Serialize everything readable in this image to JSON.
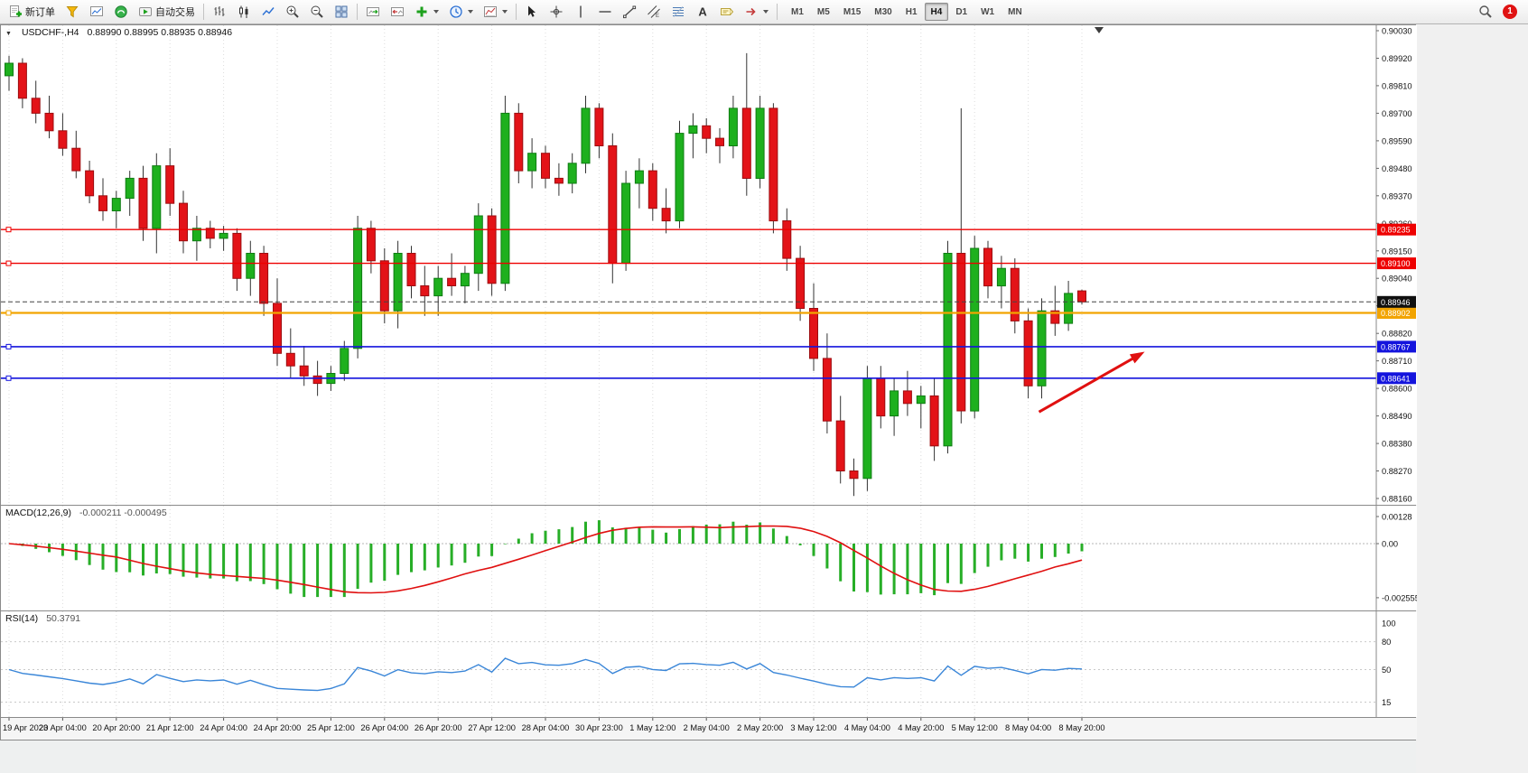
{
  "toolbar": {
    "new_order_label": "新订单",
    "auto_trading_label": "自动交易",
    "timeframes": [
      "M1",
      "M5",
      "M15",
      "M30",
      "H1",
      "H4",
      "D1",
      "W1",
      "MN"
    ],
    "active_timeframe": "H4",
    "notification_count": "1",
    "icons": [
      "new-order",
      "funnel",
      "new-chart",
      "terminal-logo",
      "auto-trading",
      "bar-chart",
      "candlestick-chart",
      "line-chart",
      "zoom-in",
      "zoom-out",
      "tile-windows",
      "auto-scroll",
      "chart-shift",
      "add-indicator",
      "periods-clock",
      "templates",
      "cursor",
      "crosshair",
      "vertical-line",
      "horizontal-line",
      "trendline",
      "equidistant-channel",
      "fibonacci",
      "text",
      "text-label",
      "arrows",
      "search",
      "notification"
    ]
  },
  "chart": {
    "symbol_title": "USDCHF-,H4",
    "ohlc_text": "0.88990 0.88995 0.88935 0.88946"
  },
  "chart_data": {
    "type": "candlestick",
    "symbol": "USDCHF",
    "timeframe": "H4",
    "bars_per_label": 4,
    "price_axis": {
      "max": 0.9003,
      "min": 0.8816,
      "ticks": [
        "0.90030",
        "0.89920",
        "0.89810",
        "0.89700",
        "0.89590",
        "0.89480",
        "0.89370",
        "0.89260",
        "0.89150",
        "0.89040",
        "0.88930",
        "0.88820",
        "0.88710",
        "0.88600",
        "0.88490",
        "0.88380",
        "0.88270",
        "0.88160"
      ]
    },
    "time_labels": [
      "19 Apr 2023",
      "20 Apr 04:00",
      "20 Apr 20:00",
      "21 Apr 12:00",
      "24 Apr 04:00",
      "24 Apr 20:00",
      "25 Apr 12:00",
      "26 Apr 04:00",
      "26 Apr 20:00",
      "27 Apr 12:00",
      "28 Apr 04:00",
      "30 Apr 23:00",
      "1 May 12:00",
      "2 May 04:00",
      "2 May 20:00",
      "3 May 12:00",
      "4 May 04:00",
      "4 May 20:00",
      "5 May 12:00",
      "8 May 04:00",
      "8 May 20:00"
    ],
    "candles": [
      [
        0.8985,
        0.8993,
        0.8979,
        0.899
      ],
      [
        0.899,
        0.8992,
        0.8972,
        0.8976
      ],
      [
        0.8976,
        0.8983,
        0.8966,
        0.897
      ],
      [
        0.897,
        0.8977,
        0.896,
        0.8963
      ],
      [
        0.8963,
        0.897,
        0.8953,
        0.8956
      ],
      [
        0.8956,
        0.8963,
        0.8944,
        0.8947
      ],
      [
        0.8947,
        0.8951,
        0.8934,
        0.8937
      ],
      [
        0.8937,
        0.8944,
        0.8927,
        0.8931
      ],
      [
        0.8931,
        0.8939,
        0.8924,
        0.8936
      ],
      [
        0.8936,
        0.8947,
        0.8929,
        0.8944
      ],
      [
        0.8944,
        0.8949,
        0.8919,
        0.8924
      ],
      [
        0.8924,
        0.8954,
        0.8914,
        0.8949
      ],
      [
        0.8949,
        0.8956,
        0.8929,
        0.8934
      ],
      [
        0.8934,
        0.8939,
        0.8914,
        0.8919
      ],
      [
        0.8919,
        0.8929,
        0.8911,
        0.8924
      ],
      [
        0.8924,
        0.8927,
        0.8916,
        0.892
      ],
      [
        0.892,
        0.8925,
        0.8915,
        0.8922
      ],
      [
        0.8922,
        0.8924,
        0.8899,
        0.8904
      ],
      [
        0.8904,
        0.8919,
        0.8897,
        0.8914
      ],
      [
        0.8914,
        0.8917,
        0.8889,
        0.8894
      ],
      [
        0.8894,
        0.8904,
        0.8869,
        0.8874
      ],
      [
        0.8874,
        0.8884,
        0.8864,
        0.8869
      ],
      [
        0.8869,
        0.8877,
        0.8861,
        0.8865
      ],
      [
        0.8865,
        0.8871,
        0.8857,
        0.8862
      ],
      [
        0.8862,
        0.8869,
        0.8859,
        0.8866
      ],
      [
        0.8866,
        0.8879,
        0.8863,
        0.8876
      ],
      [
        0.8876,
        0.8929,
        0.8872,
        0.8924
      ],
      [
        0.8924,
        0.8927,
        0.8906,
        0.8911
      ],
      [
        0.8911,
        0.8916,
        0.8886,
        0.8891
      ],
      [
        0.8891,
        0.8919,
        0.8884,
        0.8914
      ],
      [
        0.8914,
        0.8917,
        0.8896,
        0.8901
      ],
      [
        0.8901,
        0.8909,
        0.8889,
        0.8897
      ],
      [
        0.8897,
        0.8909,
        0.8889,
        0.8904
      ],
      [
        0.8904,
        0.8914,
        0.8897,
        0.8901
      ],
      [
        0.8901,
        0.8909,
        0.8894,
        0.8906
      ],
      [
        0.8906,
        0.8934,
        0.8899,
        0.8929
      ],
      [
        0.8929,
        0.8932,
        0.8897,
        0.8902
      ],
      [
        0.8902,
        0.8977,
        0.8899,
        0.897
      ],
      [
        0.897,
        0.8974,
        0.8942,
        0.8947
      ],
      [
        0.8947,
        0.896,
        0.894,
        0.8954
      ],
      [
        0.8954,
        0.8957,
        0.894,
        0.8944
      ],
      [
        0.8944,
        0.895,
        0.8937,
        0.8942
      ],
      [
        0.8942,
        0.8954,
        0.8938,
        0.895
      ],
      [
        0.895,
        0.8977,
        0.8946,
        0.8972
      ],
      [
        0.8972,
        0.8974,
        0.8952,
        0.8957
      ],
      [
        0.8957,
        0.8962,
        0.8902,
        0.891
      ],
      [
        0.891,
        0.8947,
        0.8907,
        0.8942
      ],
      [
        0.8942,
        0.8952,
        0.8932,
        0.8947
      ],
      [
        0.8947,
        0.895,
        0.8927,
        0.8932
      ],
      [
        0.8932,
        0.894,
        0.8922,
        0.8927
      ],
      [
        0.8927,
        0.8967,
        0.8924,
        0.8962
      ],
      [
        0.8962,
        0.897,
        0.8952,
        0.8965
      ],
      [
        0.8965,
        0.8968,
        0.8954,
        0.896
      ],
      [
        0.896,
        0.8964,
        0.895,
        0.8957
      ],
      [
        0.8957,
        0.8977,
        0.8952,
        0.8972
      ],
      [
        0.8972,
        0.8994,
        0.8937,
        0.8944
      ],
      [
        0.8944,
        0.8977,
        0.894,
        0.8972
      ],
      [
        0.8972,
        0.8974,
        0.8922,
        0.8927
      ],
      [
        0.8927,
        0.8932,
        0.8907,
        0.8912
      ],
      [
        0.8912,
        0.8917,
        0.8887,
        0.8892
      ],
      [
        0.8892,
        0.8902,
        0.8867,
        0.8872
      ],
      [
        0.8872,
        0.8882,
        0.8842,
        0.8847
      ],
      [
        0.8847,
        0.8857,
        0.8822,
        0.8827
      ],
      [
        0.8827,
        0.8832,
        0.8817,
        0.8824
      ],
      [
        0.8824,
        0.8869,
        0.8819,
        0.8864
      ],
      [
        0.8864,
        0.8869,
        0.8844,
        0.8849
      ],
      [
        0.8849,
        0.8864,
        0.8841,
        0.8859
      ],
      [
        0.8859,
        0.8867,
        0.8849,
        0.8854
      ],
      [
        0.8854,
        0.8861,
        0.8844,
        0.8857
      ],
      [
        0.8857,
        0.8864,
        0.8831,
        0.8837
      ],
      [
        0.8837,
        0.8919,
        0.8834,
        0.8914
      ],
      [
        0.8914,
        0.8972,
        0.8846,
        0.8851
      ],
      [
        0.8851,
        0.8921,
        0.8848,
        0.8916
      ],
      [
        0.8916,
        0.8919,
        0.8896,
        0.8901
      ],
      [
        0.8901,
        0.8913,
        0.8892,
        0.8908
      ],
      [
        0.8908,
        0.8912,
        0.8882,
        0.8887
      ],
      [
        0.8887,
        0.8892,
        0.8856,
        0.8861
      ],
      [
        0.8861,
        0.8896,
        0.8856,
        0.8891
      ],
      [
        0.8891,
        0.8901,
        0.8881,
        0.8886
      ],
      [
        0.8886,
        0.8903,
        0.8883,
        0.8898
      ],
      [
        0.8899,
        0.88995,
        0.88935,
        0.88946
      ]
    ],
    "hlines": [
      {
        "price": 0.89235,
        "label": "0.89235",
        "color": "#ee0000",
        "width": 1.4
      },
      {
        "price": 0.891,
        "label": "0.89100",
        "color": "#ee0000",
        "width": 1.4
      },
      {
        "price": 0.88902,
        "label": "0.88902",
        "color": "#f2a400",
        "width": 2.2
      },
      {
        "price": 0.88767,
        "label": "0.88767",
        "color": "#1414dd",
        "width": 1.6
      },
      {
        "price": 0.88641,
        "label": "0.88641",
        "color": "#1414dd",
        "width": 1.6
      }
    ],
    "current_price": {
      "value": 0.88946,
      "label": "0.88946",
      "color": "#101010"
    },
    "colors": {
      "up": "#1eb01e",
      "up_border": "#0e7c12",
      "down": "#e31318",
      "down_border": "#9c0d10",
      "wick": "#333333",
      "macd_hist": "#27ae27",
      "macd_signal": "#e01010",
      "rsi": "#3a86d8",
      "grid": "#dcdcdc"
    },
    "indicators": {
      "macd": {
        "label": "MACD(12,26,9)",
        "values_text": "-0.000211 -0.000495",
        "fast": 12,
        "slow": 26,
        "signal": 9,
        "axis_ticks": [
          {
            "t": "0.00128",
            "v": 0.00128
          },
          {
            "t": "0.00",
            "v": 0
          },
          {
            "t": "-0.0025559",
            "v": -0.0025559
          }
        ]
      },
      "rsi": {
        "label": "RSI(14)",
        "value_text": "50.3791",
        "period": 14,
        "levels": [
          80,
          50,
          15
        ],
        "axis_ticks": [
          {
            "t": "100",
            "v": 100
          },
          {
            "t": "80",
            "v": 80
          },
          {
            "t": "50",
            "v": 50
          },
          {
            "t": "15",
            "v": 15
          }
        ]
      }
    },
    "annotations": [
      {
        "type": "arrow",
        "from_bar": 76.8,
        "from_price": 0.88506,
        "to_bar": 84.6,
        "to_price": 0.88744,
        "color": "#e01010"
      }
    ]
  }
}
